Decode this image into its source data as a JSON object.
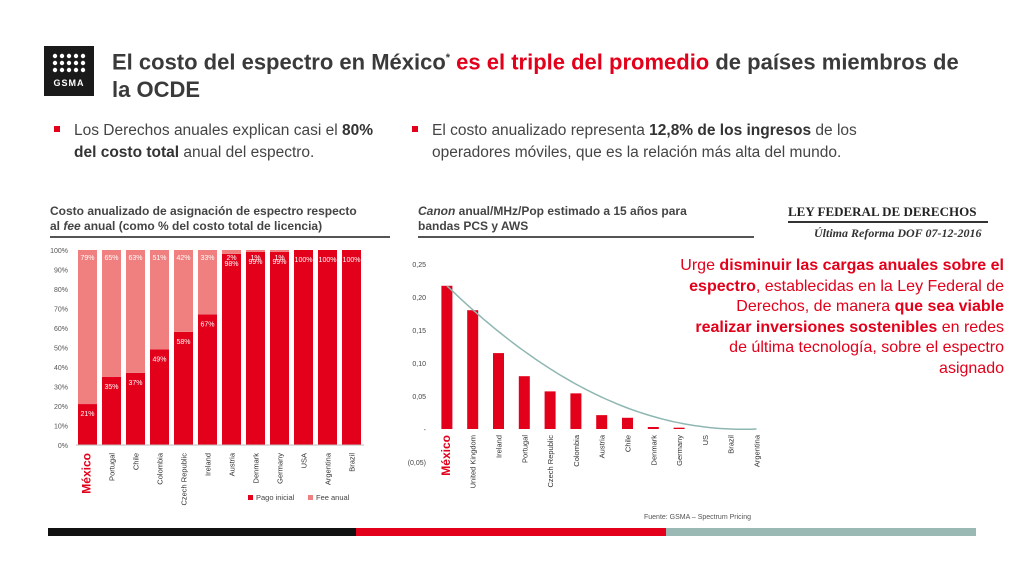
{
  "logo": {
    "text": "GSMA"
  },
  "title": {
    "part1": "El costo del espectro en México",
    "footnote_mark": "*",
    "part2": " es el triple del promedio",
    "part3": " de países miembros de la OCDE"
  },
  "bullets": [
    {
      "pre": "Los Derechos anuales explican casi el ",
      "bold": "80% del costo total",
      "post": " anual del espectro."
    },
    {
      "pre": "El costo anualizado representa ",
      "bold": "12,8% de los ingresos",
      "post": " de los operadores móviles, que es la relación más alta del mundo."
    }
  ],
  "chart1_title": {
    "line1": "Costo anualizado de asignación de espectro respecto",
    "line2_pre": "al ",
    "line2_italic": "fee",
    "line2_post": " anual (como % del costo total de licencia)"
  },
  "chart2_title": {
    "italic": "Canon",
    "rest": " anual/MHz/Pop estimado a 15 años para",
    "line2": "bandas PCS y AWS"
  },
  "law": {
    "line1": "LEY FEDERAL DE DERECHOS",
    "line2": "Última Reforma DOF 07-12-2016"
  },
  "callout": {
    "p1": "Urge ",
    "b1": "disminuir las cargas anuales sobre el espectro",
    "p2": ", establecidas en la Ley Federal de Derechos, de manera ",
    "b2": "que sea viable realizar inversiones sostenibles",
    "p3": " en redes de última tecnología, sobre el espectro asignado"
  },
  "source": "Fuente: GSMA – Spectrum Pricing",
  "colors": {
    "accent": "#e3001b",
    "fee": "#f08080",
    "curve": "#8fb7b2"
  },
  "chart_data": [
    {
      "type": "bar",
      "stacked": true,
      "categories": [
        "México",
        "Portugal",
        "Chile",
        "Colombia",
        "Czech Republic",
        "Ireland",
        "Austria",
        "Denmark",
        "Germany",
        "USA",
        "Argentina",
        "Brazil"
      ],
      "series": [
        {
          "name": "Pago inicial",
          "values": [
            21,
            35,
            37,
            49,
            58,
            67,
            98,
            99,
            99,
            100,
            100,
            100
          ],
          "labels": [
            "21%",
            "35%",
            "37%",
            "49%",
            "58%",
            "67%",
            "98%",
            "99%",
            "99%",
            "100%",
            "100%",
            "100%"
          ]
        },
        {
          "name": "Fee anual",
          "values": [
            79,
            65,
            63,
            51,
            42,
            33,
            2,
            1,
            1,
            0,
            0,
            0
          ],
          "labels": [
            "79%",
            "65%",
            "63%",
            "51%",
            "42%",
            "33%",
            "2%",
            "1%",
            "1%",
            "",
            "",
            ""
          ]
        }
      ],
      "yticks": [
        "0%",
        "10%",
        "20%",
        "30%",
        "40%",
        "50%",
        "60%",
        "70%",
        "80%",
        "90%",
        "100%"
      ],
      "ylim": [
        0,
        100
      ],
      "legend_position": "bottom"
    },
    {
      "type": "bar",
      "categories": [
        "México",
        "United Kingdom",
        "Ireland",
        "Portugal",
        "Czech Republic",
        "Colombia",
        "Austria",
        "Chile",
        "Denmark",
        "Germany",
        "US",
        "Brazil",
        "Argentina"
      ],
      "values": [
        0.217,
        0.18,
        0.115,
        0.08,
        0.057,
        0.054,
        0.021,
        0.017,
        0.003,
        0.002,
        0.0,
        0.0,
        0.0
      ],
      "trendline": "polynomial",
      "yticks": [
        "(0,05)",
        "-",
        "0,05",
        "0,10",
        "0,15",
        "0,20",
        "0,25"
      ],
      "ylim": [
        -0.05,
        0.25
      ]
    }
  ]
}
